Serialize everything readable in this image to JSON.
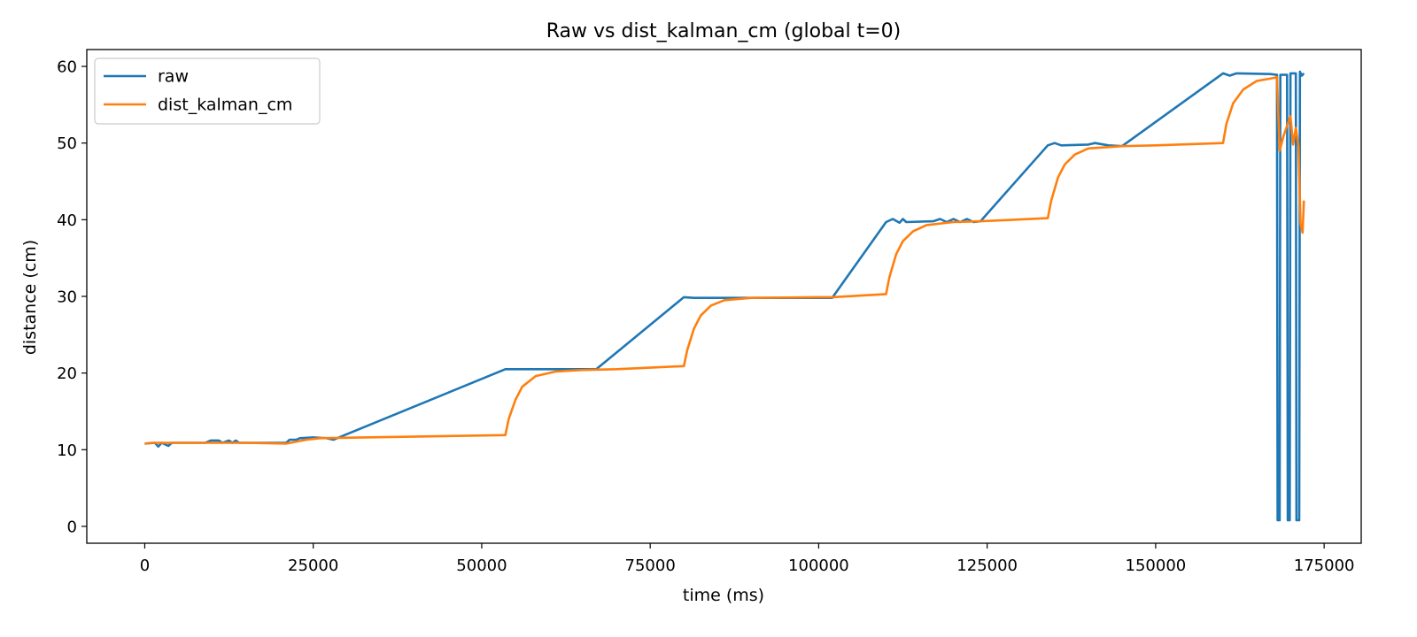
{
  "chart_data": {
    "type": "line",
    "title": "Raw vs dist_kalman_cm (global t=0)",
    "xlabel": "time (ms)",
    "ylabel": "distance (cm)",
    "xlim": [
      -8600,
      180500
    ],
    "ylim": [
      -2.2,
      62.2
    ],
    "xticks": [
      0,
      25000,
      50000,
      75000,
      100000,
      125000,
      150000,
      175000
    ],
    "yticks": [
      0,
      10,
      20,
      30,
      40,
      50,
      60
    ],
    "grid": false,
    "legend_position": "top-left",
    "series": [
      {
        "name": "raw",
        "color": "#1f77b4",
        "points": [
          [
            0,
            10.8
          ],
          [
            1500,
            10.9
          ],
          [
            2000,
            10.4
          ],
          [
            2500,
            10.9
          ],
          [
            3500,
            10.5
          ],
          [
            4000,
            10.9
          ],
          [
            9000,
            10.9
          ],
          [
            9800,
            11.2
          ],
          [
            11000,
            11.2
          ],
          [
            11500,
            10.9
          ],
          [
            12500,
            11.2
          ],
          [
            13000,
            10.9
          ],
          [
            13500,
            11.2
          ],
          [
            14000,
            10.9
          ],
          [
            21000,
            10.9
          ],
          [
            21500,
            11.3
          ],
          [
            22500,
            11.3
          ],
          [
            23000,
            11.5
          ],
          [
            25000,
            11.6
          ],
          [
            27000,
            11.5
          ],
          [
            28000,
            11.3
          ],
          [
            53500,
            20.5
          ],
          [
            67000,
            20.5
          ],
          [
            80000,
            29.9
          ],
          [
            81500,
            29.8
          ],
          [
            102000,
            29.8
          ],
          [
            110000,
            39.7
          ],
          [
            111000,
            40.1
          ],
          [
            112000,
            39.6
          ],
          [
            112500,
            40.1
          ],
          [
            113000,
            39.7
          ],
          [
            117000,
            39.8
          ],
          [
            118000,
            40.1
          ],
          [
            119000,
            39.7
          ],
          [
            120000,
            40.1
          ],
          [
            121000,
            39.7
          ],
          [
            122000,
            40.1
          ],
          [
            123000,
            39.7
          ],
          [
            124000,
            39.8
          ],
          [
            134000,
            49.7
          ],
          [
            135000,
            50.0
          ],
          [
            136000,
            49.7
          ],
          [
            140000,
            49.8
          ],
          [
            141000,
            50.0
          ],
          [
            143000,
            49.7
          ],
          [
            145000,
            49.6
          ],
          [
            160000,
            59.1
          ],
          [
            161000,
            58.8
          ],
          [
            162000,
            59.1
          ],
          [
            167000,
            59.0
          ],
          [
            168000,
            58.9
          ],
          [
            168100,
            0.8
          ],
          [
            168400,
            0.8
          ],
          [
            168500,
            58.9
          ],
          [
            169500,
            58.9
          ],
          [
            169600,
            0.8
          ],
          [
            169900,
            0.8
          ],
          [
            170000,
            59.1
          ],
          [
            170800,
            59.1
          ],
          [
            170900,
            0.8
          ],
          [
            171300,
            0.8
          ],
          [
            171400,
            59.3
          ],
          [
            171700,
            58.8
          ],
          [
            172000,
            59.1
          ]
        ]
      },
      {
        "name": "dist_kalman_cm",
        "color": "#ff7f0e",
        "points": [
          [
            0,
            10.8
          ],
          [
            1000,
            10.9
          ],
          [
            5000,
            10.9
          ],
          [
            10000,
            10.9
          ],
          [
            15000,
            10.9
          ],
          [
            21000,
            10.8
          ],
          [
            24000,
            11.3
          ],
          [
            26000,
            11.5
          ],
          [
            53500,
            11.9
          ],
          [
            54000,
            14.0
          ],
          [
            55000,
            16.5
          ],
          [
            56000,
            18.2
          ],
          [
            58000,
            19.6
          ],
          [
            61000,
            20.2
          ],
          [
            65000,
            20.4
          ],
          [
            70000,
            20.5
          ],
          [
            80000,
            20.9
          ],
          [
            80500,
            23.0
          ],
          [
            81500,
            25.8
          ],
          [
            82500,
            27.5
          ],
          [
            84000,
            28.8
          ],
          [
            86000,
            29.5
          ],
          [
            90000,
            29.8
          ],
          [
            100000,
            29.9
          ],
          [
            102000,
            29.9
          ],
          [
            110000,
            30.3
          ],
          [
            110500,
            32.5
          ],
          [
            111500,
            35.5
          ],
          [
            112500,
            37.2
          ],
          [
            114000,
            38.5
          ],
          [
            116000,
            39.3
          ],
          [
            120000,
            39.7
          ],
          [
            124000,
            39.8
          ],
          [
            134000,
            40.2
          ],
          [
            134500,
            42.5
          ],
          [
            135500,
            45.5
          ],
          [
            136500,
            47.2
          ],
          [
            138000,
            48.5
          ],
          [
            140000,
            49.3
          ],
          [
            145000,
            49.6
          ],
          [
            150000,
            49.7
          ],
          [
            160000,
            50.0
          ],
          [
            160500,
            52.5
          ],
          [
            161500,
            55.2
          ],
          [
            163000,
            57.0
          ],
          [
            165000,
            58.1
          ],
          [
            167500,
            58.5
          ],
          [
            168000,
            58.6
          ],
          [
            168400,
            49.0
          ],
          [
            169000,
            51.0
          ],
          [
            170000,
            53.5
          ],
          [
            170400,
            49.8
          ],
          [
            170800,
            52.0
          ],
          [
            171200,
            49.5
          ],
          [
            171500,
            39.5
          ],
          [
            171800,
            38.3
          ],
          [
            172000,
            42.5
          ]
        ]
      }
    ]
  }
}
